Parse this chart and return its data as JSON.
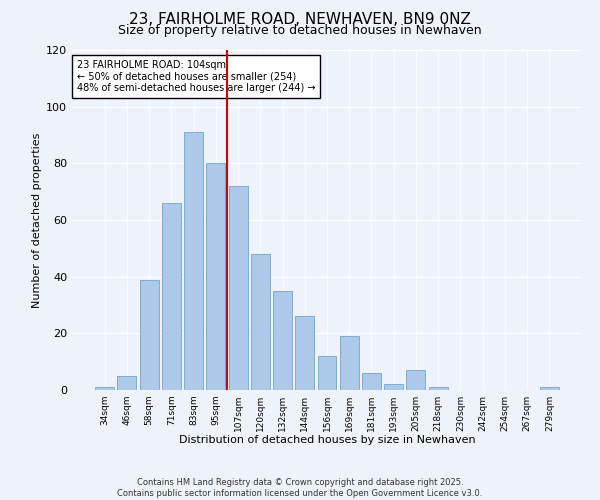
{
  "title": "23, FAIRHOLME ROAD, NEWHAVEN, BN9 0NZ",
  "subtitle": "Size of property relative to detached houses in Newhaven",
  "xlabel": "Distribution of detached houses by size in Newhaven",
  "ylabel": "Number of detached properties",
  "bar_labels": [
    "34sqm",
    "46sqm",
    "58sqm",
    "71sqm",
    "83sqm",
    "95sqm",
    "107sqm",
    "120sqm",
    "132sqm",
    "144sqm",
    "156sqm",
    "169sqm",
    "181sqm",
    "193sqm",
    "205sqm",
    "218sqm",
    "230sqm",
    "242sqm",
    "254sqm",
    "267sqm",
    "279sqm"
  ],
  "bar_values": [
    1,
    5,
    39,
    66,
    91,
    80,
    72,
    48,
    35,
    26,
    12,
    19,
    6,
    2,
    7,
    1,
    0,
    0,
    0,
    0,
    1
  ],
  "bar_color": "#adc8e8",
  "bar_edge_color": "#7bafd4",
  "vline_x": 5.5,
  "vline_color": "#cc0000",
  "annotation_text": "23 FAIRHOLME ROAD: 104sqm\n← 50% of detached houses are smaller (254)\n48% of semi-detached houses are larger (244) →",
  "annotation_box_color": "#ffffff",
  "annotation_box_edge": "#000000",
  "ylim": [
    0,
    120
  ],
  "yticks": [
    0,
    20,
    40,
    60,
    80,
    100,
    120
  ],
  "background_color": "#eef2fb",
  "footer_line1": "Contains HM Land Registry data © Crown copyright and database right 2025.",
  "footer_line2": "Contains public sector information licensed under the Open Government Licence v3.0.",
  "title_fontsize": 11,
  "subtitle_fontsize": 9,
  "xlabel_fontsize": 8,
  "ylabel_fontsize": 8
}
